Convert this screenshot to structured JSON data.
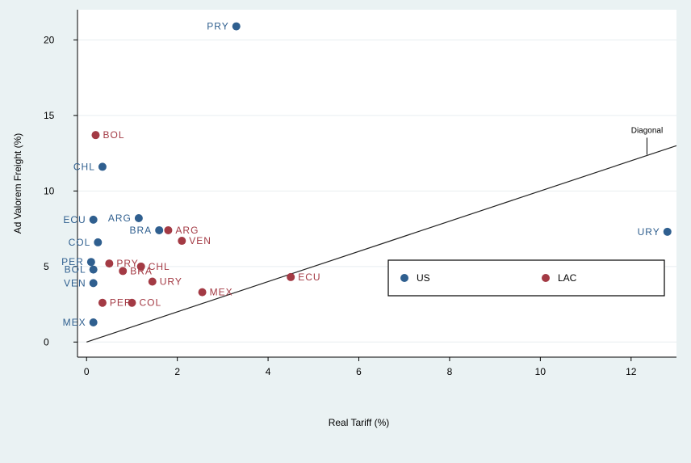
{
  "chart_data": {
    "type": "scatter",
    "xlabel": "Real Tariff (%)",
    "ylabel": "Ad Valorem Freight (%)",
    "xlim": [
      -0.2,
      13
    ],
    "ylim": [
      -1,
      22
    ],
    "xticks": [
      0,
      2,
      4,
      6,
      8,
      10,
      12
    ],
    "yticks": [
      0,
      5,
      10,
      15,
      20
    ],
    "grid": true,
    "legend_position": "middle-right",
    "series": [
      {
        "name": "US",
        "color": "#2f5f8f",
        "label_side": "left",
        "points": [
          {
            "label": "PRY",
            "x": 3.3,
            "y": 20.9
          },
          {
            "label": "CHL",
            "x": 0.35,
            "y": 11.6
          },
          {
            "label": "ECU",
            "x": 0.15,
            "y": 8.1
          },
          {
            "label": "ARG",
            "x": 1.15,
            "y": 8.2
          },
          {
            "label": "BRA",
            "x": 1.6,
            "y": 7.4
          },
          {
            "label": "COL",
            "x": 0.25,
            "y": 6.6
          },
          {
            "label": "PER",
            "x": 0.1,
            "y": 5.3
          },
          {
            "label": "BOL",
            "x": 0.15,
            "y": 4.8
          },
          {
            "label": "VEN",
            "x": 0.15,
            "y": 3.9
          },
          {
            "label": "MEX",
            "x": 0.15,
            "y": 1.3
          },
          {
            "label": "URY",
            "x": 12.8,
            "y": 7.3
          }
        ]
      },
      {
        "name": "LAC",
        "color": "#a33a44",
        "label_side": "right",
        "points": [
          {
            "label": "BOL",
            "x": 0.2,
            "y": 13.7
          },
          {
            "label": "ARG",
            "x": 1.8,
            "y": 7.4
          },
          {
            "label": "VEN",
            "x": 2.1,
            "y": 6.7
          },
          {
            "label": "PRY",
            "x": 0.5,
            "y": 5.2
          },
          {
            "label": "CHL",
            "x": 1.2,
            "y": 5.0
          },
          {
            "label": "BRA",
            "x": 0.8,
            "y": 4.7
          },
          {
            "label": "URY",
            "x": 1.45,
            "y": 4.0
          },
          {
            "label": "MEX",
            "x": 2.55,
            "y": 3.3
          },
          {
            "label": "ECU",
            "x": 4.5,
            "y": 4.3
          },
          {
            "label": "PER",
            "x": 0.35,
            "y": 2.6
          },
          {
            "label": "COL",
            "x": 1.0,
            "y": 2.6
          }
        ]
      }
    ],
    "reference_line": {
      "label": "Diagonal",
      "from": [
        0,
        0
      ],
      "to": [
        13,
        13
      ]
    }
  }
}
